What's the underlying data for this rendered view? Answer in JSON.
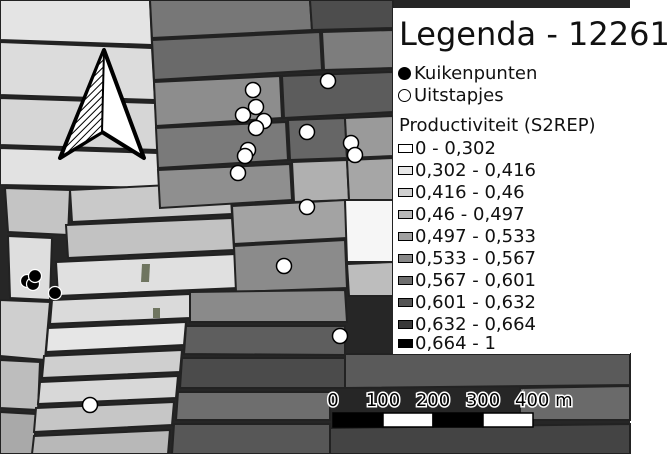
{
  "legend": {
    "title": "Legenda - 12261",
    "points": [
      {
        "label": "Kuikenpunten",
        "style": "filled"
      },
      {
        "label": "Uitstapjes",
        "style": "hollow"
      }
    ],
    "section_title": "Productiviteit (S2REP)",
    "classes": [
      {
        "label": "0 - 0,302",
        "color": "#ffffff"
      },
      {
        "label": "0,302 - 0,416",
        "color": "#e8e8e8"
      },
      {
        "label": "0,416 - 0,46",
        "color": "#d0d0d0"
      },
      {
        "label": "0,46 - 0,497",
        "color": "#b8b8b8"
      },
      {
        "label": "0,497 - 0,533",
        "color": "#a0a0a0"
      },
      {
        "label": "0,533 - 0,567",
        "color": "#888888"
      },
      {
        "label": "0,567 - 0,601",
        "color": "#6e6e6e"
      },
      {
        "label": "0,601 - 0,632",
        "color": "#555555"
      },
      {
        "label": "0,632 - 0,664",
        "color": "#383838"
      },
      {
        "label": "0,664 - 1",
        "color": "#000000"
      }
    ]
  },
  "scalebar": {
    "unit": "m",
    "ticks": [
      {
        "label": "0"
      },
      {
        "label": "100"
      },
      {
        "label": "200"
      },
      {
        "label": "300"
      },
      {
        "label": "400 m"
      }
    ]
  },
  "north_arrow": {
    "icon": "north-arrow-icon"
  }
}
